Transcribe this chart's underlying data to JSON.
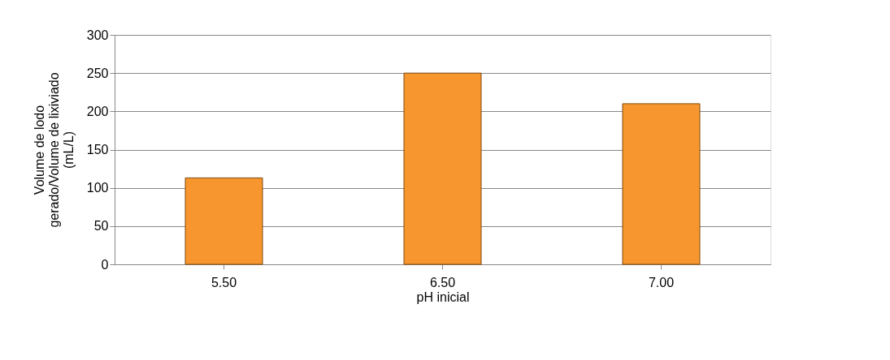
{
  "chart_data": {
    "type": "bar",
    "xlabel": "pH inicial",
    "ylabel": "Volume de lodo\ngerado/Volume de  lixiviado\n(mL/L)",
    "categories": [
      "5.50",
      "6.50",
      "7.00"
    ],
    "values": [
      113,
      250,
      210
    ],
    "color": "#f7962e",
    "ylim": [
      0,
      300
    ],
    "yticks": [
      0,
      50,
      100,
      150,
      200,
      250,
      300
    ],
    "grid": "y"
  }
}
